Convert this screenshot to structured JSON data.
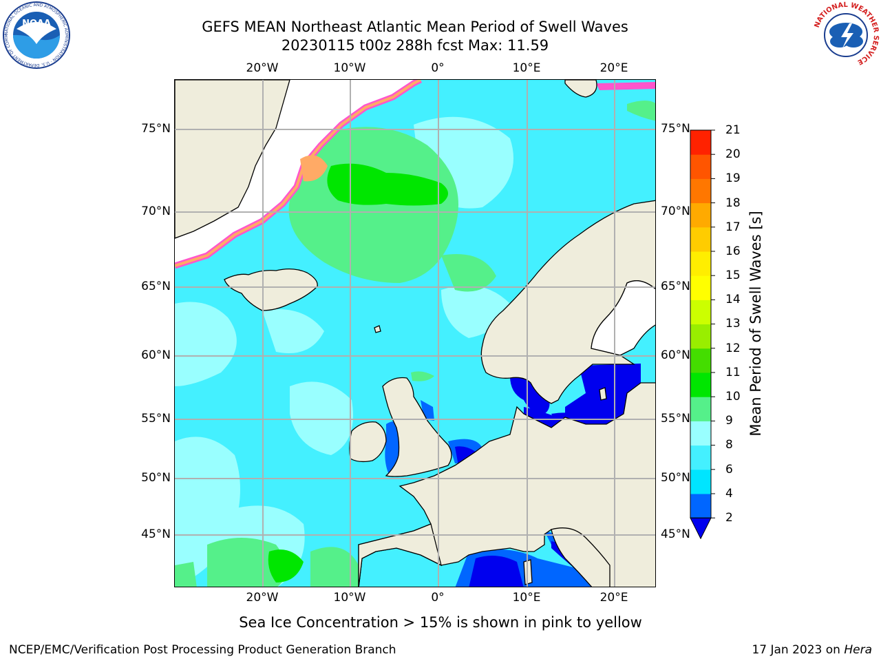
{
  "title": {
    "line1": "GEFS MEAN Northeast Atlantic Mean Period of Swell Waves",
    "line2": "20230115 t00z 288h fcst   Max: 11.59"
  },
  "lon_labels": [
    "20°W",
    "10°W",
    "0°",
    "10°E",
    "20°E"
  ],
  "lat_labels": [
    "75°N",
    "70°N",
    "65°N",
    "60°N",
    "55°N",
    "50°N",
    "45°N"
  ],
  "colorbar": {
    "title": "Mean Period of Swell Waves [s]",
    "ticks": [
      "2",
      "4",
      "6",
      "8",
      "9",
      "10",
      "11",
      "12",
      "13",
      "14",
      "15",
      "16",
      "17",
      "18",
      "19",
      "20",
      "21"
    ],
    "colors": [
      "#0066ff",
      "#00e5ff",
      "#44f0ff",
      "#99ffff",
      "#55f08a",
      "#00e600",
      "#44dd00",
      "#99ee00",
      "#ccff00",
      "#ffff00",
      "#ffee00",
      "#ffcc00",
      "#ffaa00",
      "#ff7700",
      "#ff5500",
      "#ff2200"
    ],
    "under_color": "#0000ee"
  },
  "colors": {
    "land": "#efeddc",
    "ocean": "#44f0ff",
    "grid": "#b0b0b0"
  },
  "ice_note": "Sea Ice Concentration > 15% is shown in pink to yellow",
  "footer": {
    "left": "NCEP/EMC/Verification Post Processing Product Generation Branch",
    "date": "17 Jan 2023 on ",
    "host": "Hera"
  },
  "logos": {
    "noaa_text": "NOAA",
    "noaa_ring": "NATIONAL OCEANIC AND ATMOSPHERIC ADMINISTRATION · U.S. DEPARTMENT OF COMMERCE",
    "nws_ring": "NATIONAL WEATHER SERVICE"
  }
}
